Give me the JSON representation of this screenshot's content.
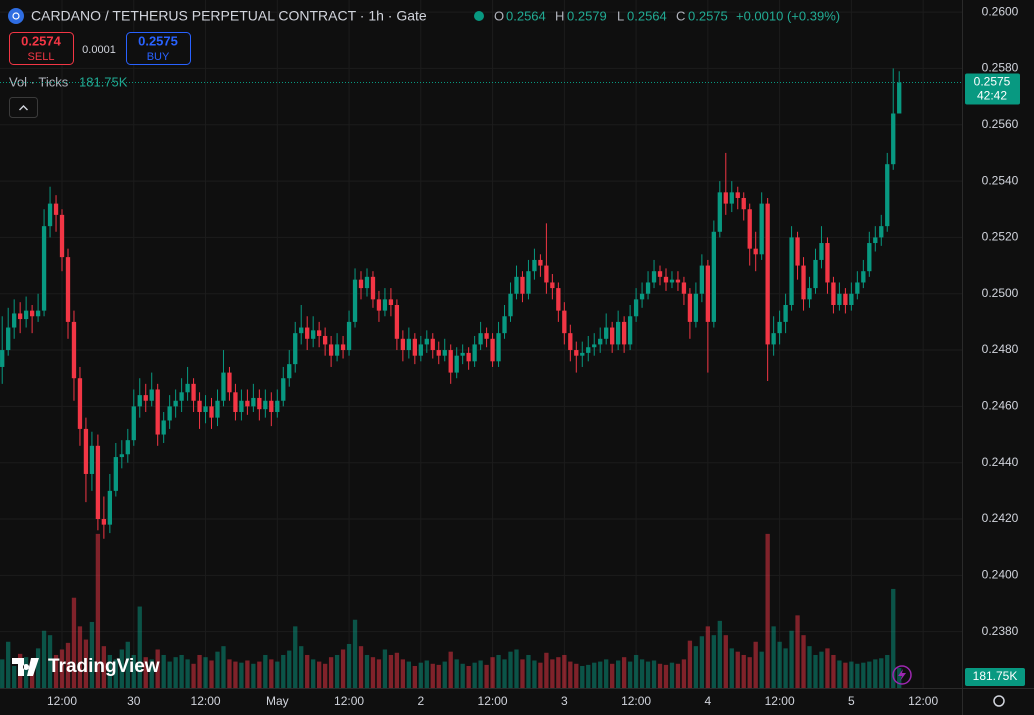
{
  "chart_data": {
    "type": "candlestick",
    "title": "CARDANO / TETHERUS PERPETUAL CONTRACT · 1h · Gate",
    "ohlc_letters": [
      "O",
      "H",
      "L",
      "C"
    ],
    "change": "+0.0010 (+0.39%)",
    "sell": {
      "price": "0.2574",
      "label": "SELL"
    },
    "spread": "0.0001",
    "buy": {
      "price": "0.2575",
      "label": "BUY"
    },
    "volume_title": "Vol · Ticks",
    "volume_label": "181.75K",
    "countdown": "42:42",
    "logo": "TradingView",
    "up_color": "#089981",
    "down_color": "#f23645",
    "grid": true,
    "xlim": [
      -0.37,
      160.5
    ],
    "ylim": [
      0.236,
      0.26043
    ],
    "vlim": [
      0,
      6250
    ],
    "yticks": [
      {
        "value": 0.238,
        "label": "0.2380"
      },
      {
        "value": 0.24,
        "label": "0.2400"
      },
      {
        "value": 0.242,
        "label": "0.2420"
      },
      {
        "value": 0.244,
        "label": "0.2440"
      },
      {
        "value": 0.246,
        "label": "0.2460"
      },
      {
        "value": 0.248,
        "label": "0.2480"
      },
      {
        "value": 0.25,
        "label": "0.2500"
      },
      {
        "value": 0.252,
        "label": "0.2520"
      },
      {
        "value": 0.254,
        "label": "0.2540"
      },
      {
        "value": 0.256,
        "label": "0.2560"
      },
      {
        "value": 0.258,
        "label": "0.2580"
      },
      {
        "value": 0.26,
        "label": "0.2600"
      }
    ],
    "xticks": [
      {
        "value": 10,
        "label": "12:00"
      },
      {
        "value": 22,
        "label": "30"
      },
      {
        "value": 34,
        "label": "12:00"
      },
      {
        "value": 46,
        "label": "May"
      },
      {
        "value": 58,
        "label": "12:00"
      },
      {
        "value": 70,
        "label": "2"
      },
      {
        "value": 82,
        "label": "12:00"
      },
      {
        "value": 94,
        "label": "3"
      },
      {
        "value": 106,
        "label": "12:00"
      },
      {
        "value": 118,
        "label": "4"
      },
      {
        "value": 130,
        "label": "12:00"
      },
      {
        "value": 142,
        "label": "5"
      },
      {
        "value": 154,
        "label": "12:00"
      }
    ],
    "candles": [
      [
        0.2474,
        0.2492,
        0.2468,
        0.248
      ],
      [
        0.248,
        0.2495,
        0.2478,
        0.2488
      ],
      [
        0.2488,
        0.2498,
        0.2484,
        0.2493
      ],
      [
        0.2493,
        0.2497,
        0.2486,
        0.2491
      ],
      [
        0.2491,
        0.2499,
        0.2488,
        0.2494
      ],
      [
        0.2494,
        0.2496,
        0.2486,
        0.2492
      ],
      [
        0.2492,
        0.25,
        0.249,
        0.2494
      ],
      [
        0.2494,
        0.253,
        0.2492,
        0.2524
      ],
      [
        0.2524,
        0.2538,
        0.252,
        0.2532
      ],
      [
        0.2532,
        0.2535,
        0.2522,
        0.2528
      ],
      [
        0.2528,
        0.253,
        0.2508,
        0.2513
      ],
      [
        0.2513,
        0.2516,
        0.2484,
        0.249
      ],
      [
        0.249,
        0.2494,
        0.2462,
        0.247
      ],
      [
        0.247,
        0.2474,
        0.2446,
        0.2452
      ],
      [
        0.2452,
        0.2456,
        0.2426,
        0.2436
      ],
      [
        0.2436,
        0.2451,
        0.243,
        0.2446
      ],
      [
        0.2446,
        0.245,
        0.2416,
        0.242
      ],
      [
        0.242,
        0.2428,
        0.2413,
        0.2418
      ],
      [
        0.2418,
        0.2436,
        0.2415,
        0.243
      ],
      [
        0.243,
        0.2447,
        0.2428,
        0.2442
      ],
      [
        0.2442,
        0.2448,
        0.2438,
        0.2443
      ],
      [
        0.2443,
        0.2452,
        0.244,
        0.2448
      ],
      [
        0.2448,
        0.2466,
        0.2446,
        0.246
      ],
      [
        0.246,
        0.247,
        0.2456,
        0.2464
      ],
      [
        0.2464,
        0.2468,
        0.2458,
        0.2462
      ],
      [
        0.2462,
        0.2472,
        0.246,
        0.2466
      ],
      [
        0.2466,
        0.2468,
        0.2446,
        0.245
      ],
      [
        0.245,
        0.2458,
        0.2447,
        0.2455
      ],
      [
        0.2455,
        0.2464,
        0.2452,
        0.246
      ],
      [
        0.246,
        0.2466,
        0.2456,
        0.2462
      ],
      [
        0.2462,
        0.247,
        0.2458,
        0.2465
      ],
      [
        0.2465,
        0.2474,
        0.2462,
        0.2468
      ],
      [
        0.2468,
        0.247,
        0.2458,
        0.2462
      ],
      [
        0.2462,
        0.2465,
        0.2452,
        0.2458
      ],
      [
        0.2458,
        0.2464,
        0.2454,
        0.246
      ],
      [
        0.246,
        0.2463,
        0.2452,
        0.2456
      ],
      [
        0.2456,
        0.2466,
        0.2453,
        0.2462
      ],
      [
        0.2462,
        0.248,
        0.246,
        0.2472
      ],
      [
        0.2472,
        0.2474,
        0.2462,
        0.2465
      ],
      [
        0.2465,
        0.2468,
        0.2455,
        0.2458
      ],
      [
        0.2458,
        0.2466,
        0.2455,
        0.2462
      ],
      [
        0.2462,
        0.2466,
        0.2457,
        0.246
      ],
      [
        0.246,
        0.2468,
        0.2458,
        0.2463
      ],
      [
        0.2463,
        0.2466,
        0.2455,
        0.2459
      ],
      [
        0.2459,
        0.2466,
        0.2456,
        0.2462
      ],
      [
        0.2462,
        0.2465,
        0.2453,
        0.2458
      ],
      [
        0.2458,
        0.2466,
        0.2456,
        0.2462
      ],
      [
        0.2462,
        0.2474,
        0.246,
        0.247
      ],
      [
        0.247,
        0.248,
        0.2467,
        0.2475
      ],
      [
        0.2475,
        0.249,
        0.2472,
        0.2486
      ],
      [
        0.2486,
        0.2496,
        0.2482,
        0.2488
      ],
      [
        0.2488,
        0.2492,
        0.248,
        0.2484
      ],
      [
        0.2484,
        0.2492,
        0.2481,
        0.2487
      ],
      [
        0.2487,
        0.249,
        0.2481,
        0.2485
      ],
      [
        0.2485,
        0.2488,
        0.2478,
        0.2482
      ],
      [
        0.2482,
        0.2485,
        0.2474,
        0.2478
      ],
      [
        0.2478,
        0.2486,
        0.2476,
        0.2482
      ],
      [
        0.2482,
        0.2485,
        0.2477,
        0.248
      ],
      [
        0.248,
        0.2494,
        0.2478,
        0.249
      ],
      [
        0.249,
        0.2509,
        0.2488,
        0.2505
      ],
      [
        0.2505,
        0.2508,
        0.2498,
        0.2502
      ],
      [
        0.2502,
        0.2509,
        0.2499,
        0.2506
      ],
      [
        0.2506,
        0.2508,
        0.2495,
        0.2498
      ],
      [
        0.2498,
        0.2501,
        0.249,
        0.2494
      ],
      [
        0.2494,
        0.2502,
        0.2492,
        0.2498
      ],
      [
        0.2498,
        0.2502,
        0.2492,
        0.2496
      ],
      [
        0.2496,
        0.2498,
        0.248,
        0.2484
      ],
      [
        0.2484,
        0.2487,
        0.2476,
        0.248
      ],
      [
        0.248,
        0.2488,
        0.2477,
        0.2484
      ],
      [
        0.2484,
        0.2486,
        0.2475,
        0.2478
      ],
      [
        0.2478,
        0.2485,
        0.2476,
        0.2482
      ],
      [
        0.2482,
        0.2487,
        0.2479,
        0.2484
      ],
      [
        0.2484,
        0.2486,
        0.2477,
        0.248
      ],
      [
        0.248,
        0.2483,
        0.2475,
        0.2478
      ],
      [
        0.2478,
        0.2484,
        0.2476,
        0.248
      ],
      [
        0.248,
        0.2482,
        0.2468,
        0.2472
      ],
      [
        0.2472,
        0.2481,
        0.247,
        0.2478
      ],
      [
        0.2478,
        0.2482,
        0.2475,
        0.2479
      ],
      [
        0.2479,
        0.2481,
        0.2473,
        0.2476
      ],
      [
        0.2476,
        0.2485,
        0.2474,
        0.2482
      ],
      [
        0.2482,
        0.249,
        0.248,
        0.2486
      ],
      [
        0.2486,
        0.2488,
        0.2481,
        0.2484
      ],
      [
        0.2484,
        0.2486,
        0.2474,
        0.2476
      ],
      [
        0.2476,
        0.249,
        0.2474,
        0.2486
      ],
      [
        0.2486,
        0.2496,
        0.2484,
        0.2492
      ],
      [
        0.2492,
        0.2504,
        0.249,
        0.25
      ],
      [
        0.25,
        0.251,
        0.2498,
        0.2506
      ],
      [
        0.2506,
        0.2508,
        0.2497,
        0.25
      ],
      [
        0.25,
        0.2512,
        0.2498,
        0.2508
      ],
      [
        0.2508,
        0.2516,
        0.2505,
        0.2512
      ],
      [
        0.2512,
        0.2514,
        0.2506,
        0.251
      ],
      [
        0.251,
        0.2525,
        0.25,
        0.2504
      ],
      [
        0.2504,
        0.2507,
        0.2498,
        0.2502
      ],
      [
        0.2502,
        0.2504,
        0.249,
        0.2494
      ],
      [
        0.2494,
        0.2497,
        0.2482,
        0.2486
      ],
      [
        0.2486,
        0.2489,
        0.2476,
        0.248
      ],
      [
        0.248,
        0.2483,
        0.2472,
        0.2478
      ],
      [
        0.2478,
        0.2483,
        0.2474,
        0.2479
      ],
      [
        0.2479,
        0.2485,
        0.2476,
        0.2481
      ],
      [
        0.2481,
        0.2486,
        0.2478,
        0.2482
      ],
      [
        0.2482,
        0.2488,
        0.2479,
        0.2484
      ],
      [
        0.2484,
        0.2493,
        0.2482,
        0.2488
      ],
      [
        0.2488,
        0.249,
        0.2479,
        0.2482
      ],
      [
        0.2482,
        0.2494,
        0.248,
        0.249
      ],
      [
        0.249,
        0.2492,
        0.2479,
        0.2482
      ],
      [
        0.2482,
        0.2496,
        0.248,
        0.2492
      ],
      [
        0.2492,
        0.2502,
        0.249,
        0.2498
      ],
      [
        0.2498,
        0.2504,
        0.2495,
        0.25
      ],
      [
        0.25,
        0.2508,
        0.2498,
        0.2504
      ],
      [
        0.2504,
        0.2512,
        0.2502,
        0.2508
      ],
      [
        0.2508,
        0.251,
        0.2503,
        0.2506
      ],
      [
        0.2506,
        0.2509,
        0.2501,
        0.2504
      ],
      [
        0.2504,
        0.2508,
        0.2502,
        0.2505
      ],
      [
        0.2505,
        0.2508,
        0.2501,
        0.2504
      ],
      [
        0.2504,
        0.2506,
        0.2496,
        0.25
      ],
      [
        0.25,
        0.2502,
        0.2484,
        0.249
      ],
      [
        0.249,
        0.2504,
        0.2488,
        0.25
      ],
      [
        0.25,
        0.2514,
        0.2497,
        0.251
      ],
      [
        0.251,
        0.2512,
        0.2472,
        0.249
      ],
      [
        0.249,
        0.2526,
        0.2488,
        0.2522
      ],
      [
        0.2522,
        0.254,
        0.252,
        0.2536
      ],
      [
        0.2536,
        0.255,
        0.2528,
        0.2532
      ],
      [
        0.2532,
        0.254,
        0.2529,
        0.2536
      ],
      [
        0.2536,
        0.2538,
        0.253,
        0.2534
      ],
      [
        0.2534,
        0.2536,
        0.2526,
        0.253
      ],
      [
        0.253,
        0.2532,
        0.251,
        0.2516
      ],
      [
        0.2516,
        0.2522,
        0.2508,
        0.2514
      ],
      [
        0.2514,
        0.2536,
        0.2512,
        0.2532
      ],
      [
        0.2532,
        0.2534,
        0.2469,
        0.2482
      ],
      [
        0.2482,
        0.2492,
        0.2478,
        0.2486
      ],
      [
        0.2486,
        0.2494,
        0.2482,
        0.249
      ],
      [
        0.249,
        0.25,
        0.2486,
        0.2496
      ],
      [
        0.2496,
        0.2524,
        0.2494,
        0.252
      ],
      [
        0.252,
        0.2522,
        0.2505,
        0.251
      ],
      [
        0.251,
        0.2513,
        0.2494,
        0.2498
      ],
      [
        0.2498,
        0.2506,
        0.2495,
        0.2502
      ],
      [
        0.2502,
        0.2516,
        0.25,
        0.2512
      ],
      [
        0.2512,
        0.2524,
        0.2509,
        0.2518
      ],
      [
        0.2518,
        0.252,
        0.25,
        0.2504
      ],
      [
        0.2504,
        0.2506,
        0.2493,
        0.2496
      ],
      [
        0.2496,
        0.2504,
        0.2494,
        0.25
      ],
      [
        0.25,
        0.2502,
        0.2493,
        0.2496
      ],
      [
        0.2496,
        0.2504,
        0.2494,
        0.25
      ],
      [
        0.25,
        0.2508,
        0.2498,
        0.2504
      ],
      [
        0.2504,
        0.2512,
        0.2502,
        0.2508
      ],
      [
        0.2508,
        0.2522,
        0.2506,
        0.2518
      ],
      [
        0.2518,
        0.2524,
        0.2515,
        0.252
      ],
      [
        0.252,
        0.2528,
        0.2517,
        0.2524
      ],
      [
        0.2524,
        0.255,
        0.2522,
        0.2546
      ],
      [
        0.2546,
        0.258,
        0.2544,
        0.2564
      ],
      [
        0.2564,
        0.2579,
        0.2564,
        0.2575
      ]
    ],
    "volumes": [
      260,
      420,
      200,
      310,
      280,
      240,
      360,
      520,
      480,
      300,
      350,
      410,
      820,
      560,
      440,
      600,
      1400,
      380,
      300,
      260,
      350,
      420,
      300,
      740,
      280,
      260,
      350,
      300,
      240,
      280,
      300,
      260,
      220,
      300,
      280,
      250,
      330,
      380,
      260,
      240,
      230,
      250,
      220,
      240,
      300,
      260,
      240,
      300,
      340,
      560,
      380,
      300,
      260,
      240,
      220,
      280,
      300,
      350,
      400,
      620,
      380,
      300,
      280,
      260,
      350,
      300,
      320,
      260,
      240,
      200,
      230,
      250,
      220,
      210,
      240,
      330,
      260,
      220,
      200,
      230,
      250,
      210,
      280,
      300,
      260,
      330,
      350,
      260,
      300,
      250,
      230,
      320,
      260,
      280,
      300,
      240,
      220,
      200,
      210,
      230,
      240,
      260,
      220,
      250,
      280,
      240,
      300,
      260,
      240,
      250,
      220,
      210,
      230,
      220,
      260,
      430,
      380,
      470,
      560,
      480,
      610,
      480,
      360,
      330,
      300,
      280,
      420,
      330,
      1400,
      560,
      420,
      360,
      520,
      660,
      480,
      380,
      300,
      330,
      360,
      300,
      250,
      230,
      240,
      220,
      230,
      240,
      260,
      270,
      300,
      900,
      181.75
    ]
  }
}
